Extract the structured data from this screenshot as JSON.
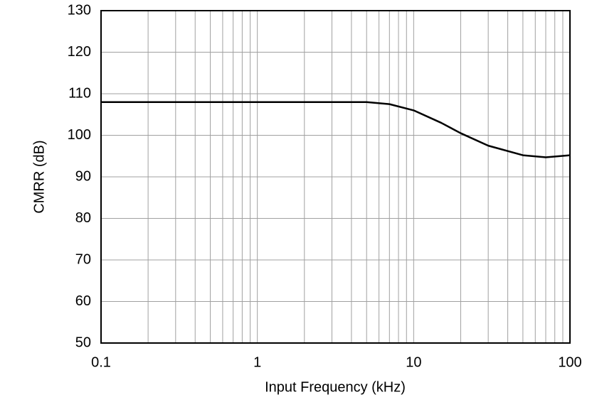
{
  "chart_data": {
    "type": "line",
    "x_label": "Input Frequency (kHz)",
    "y_label": "CMRR (dB)",
    "x": [
      0.1,
      1,
      5,
      7,
      10,
      15,
      20,
      30,
      50,
      70,
      100
    ],
    "series": [
      {
        "name": "CMRR",
        "color": "#000000",
        "values": [
          108,
          108,
          108,
          107.5,
          106,
          103,
          100.5,
          97.5,
          95.2,
          94.7,
          95.2
        ]
      }
    ],
    "xlim": [
      0.1,
      100
    ],
    "ylim": [
      50,
      130
    ],
    "x_log": true,
    "xticks": [
      0.1,
      1,
      10,
      100
    ],
    "x_minor_ticks": [
      0.2,
      0.3,
      0.4,
      0.5,
      0.6,
      0.7,
      0.8,
      0.9,
      2,
      3,
      4,
      5,
      6,
      7,
      8,
      9,
      20,
      30,
      40,
      50,
      60,
      70,
      80,
      90
    ],
    "yticks": [
      50,
      60,
      70,
      80,
      90,
      100,
      110,
      120,
      130
    ],
    "grid": true
  }
}
